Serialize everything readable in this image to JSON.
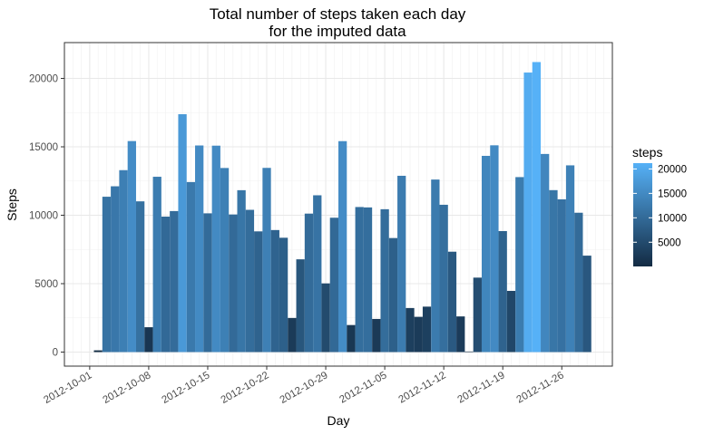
{
  "chart_data": {
    "type": "bar",
    "title": "Total number of steps taken each day",
    "subtitle": "for the imputed data",
    "xlabel": "Day",
    "ylabel": "Steps",
    "x": [
      "2012-10-02",
      "2012-10-03",
      "2012-10-04",
      "2012-10-05",
      "2012-10-06",
      "2012-10-07",
      "2012-10-08",
      "2012-10-09",
      "2012-10-10",
      "2012-10-11",
      "2012-10-12",
      "2012-10-13",
      "2012-10-14",
      "2012-10-15",
      "2012-10-16",
      "2012-10-17",
      "2012-10-18",
      "2012-10-19",
      "2012-10-20",
      "2012-10-21",
      "2012-10-22",
      "2012-10-23",
      "2012-10-24",
      "2012-10-25",
      "2012-10-26",
      "2012-10-27",
      "2012-10-28",
      "2012-10-29",
      "2012-10-30",
      "2012-10-31",
      "2012-11-01",
      "2012-11-02",
      "2012-11-03",
      "2012-11-04",
      "2012-11-05",
      "2012-11-06",
      "2012-11-07",
      "2012-11-08",
      "2012-11-09",
      "2012-11-10",
      "2012-11-11",
      "2012-11-12",
      "2012-11-13",
      "2012-11-14",
      "2012-11-15",
      "2012-11-16",
      "2012-11-17",
      "2012-11-18",
      "2012-11-19",
      "2012-11-20",
      "2012-11-21",
      "2012-11-22",
      "2012-11-23",
      "2012-11-24",
      "2012-11-25",
      "2012-11-26",
      "2012-11-27",
      "2012-11-28",
      "2012-11-29"
    ],
    "values": [
      126,
      11352,
      12116,
      13294,
      15420,
      11015,
      1816,
      12811,
      9900,
      10304,
      17382,
      12426,
      15098,
      10139,
      15084,
      13452,
      10056,
      11829,
      10395,
      8821,
      13460,
      8918,
      8355,
      2492,
      6778,
      10119,
      11458,
      5018,
      9819,
      15414,
      1976,
      10600,
      10571,
      2421,
      10439,
      8334,
      12883,
      3219,
      2576,
      3321,
      12608,
      10765,
      7336,
      2605,
      41,
      5441,
      14339,
      15110,
      8841,
      4472,
      12787,
      20427,
      21194,
      14478,
      11834,
      11162,
      13646,
      10183,
      7047
    ],
    "ylim": [
      0,
      22000
    ],
    "xlim": [
      "2012-09-28",
      "2012-12-02"
    ],
    "x_ticks": [
      "2012-10-01",
      "2012-10-08",
      "2012-10-15",
      "2012-10-22",
      "2012-10-29",
      "2012-11-05",
      "2012-11-12",
      "2012-11-19",
      "2012-11-26"
    ],
    "y_ticks": [
      0,
      5000,
      10000,
      15000,
      20000
    ],
    "grid": true,
    "legend": {
      "title": "steps",
      "position": "right",
      "labels": [
        5000,
        10000,
        15000,
        20000
      ],
      "min": 41,
      "max": 21194,
      "color_low": "#132b43",
      "color_high": "#56b1f7"
    }
  }
}
